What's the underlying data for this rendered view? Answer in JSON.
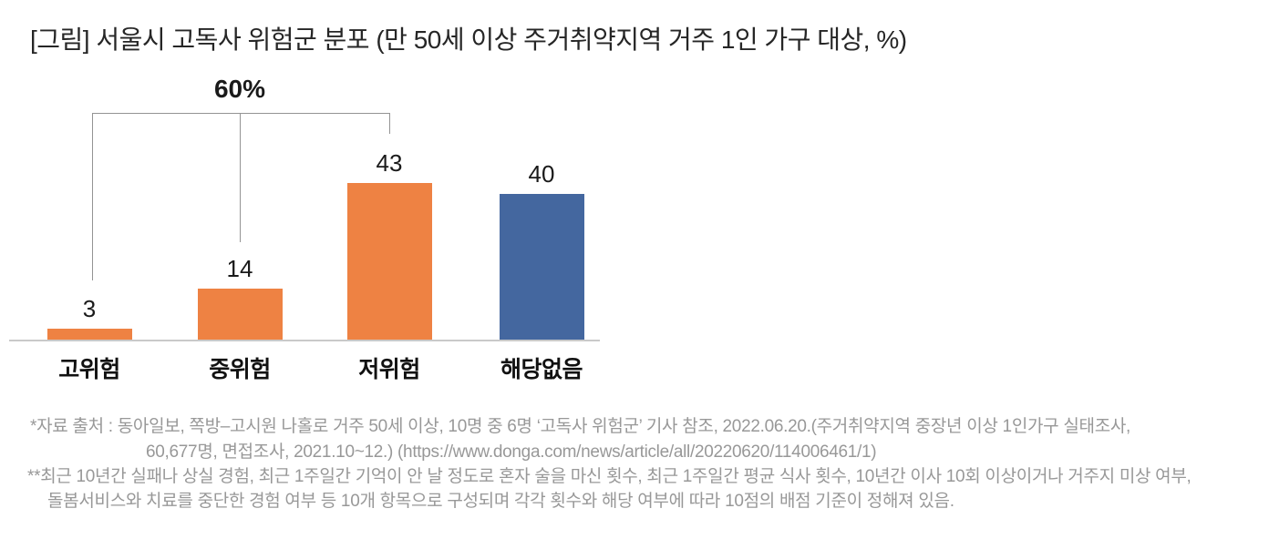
{
  "title": "[그림] 서울시 고독사 위험군 분포 (만 50세 이상 주거취약지역 거주 1인 가구 대상, %)",
  "chart_data": {
    "type": "bar",
    "title": "서울시 고독사 위험군 분포",
    "unit": "%",
    "categories": [
      "고위험",
      "중위험",
      "저위험",
      "해당없음"
    ],
    "values": [
      3,
      14,
      43,
      40
    ],
    "bar_colors": [
      "#EE8243",
      "#EE8243",
      "#EE8243",
      "#44679F"
    ],
    "annotation": {
      "label": "60%",
      "note": "bracket spanning 고위험+중위험+저위험 (3+14+43=60)"
    },
    "ylim": [
      0,
      45
    ],
    "gridlines": false,
    "value_labels_shown": true,
    "legend": "none"
  },
  "colors": {
    "orange_series": "#EE8243",
    "blue_series": "#44679F",
    "axis_line": "#c9c9c9",
    "bracket_line": "#949494",
    "footnote_text": "#989898"
  },
  "footnotes": {
    "line1": "*자료 출처 : 동아일보, 쪽방–고시원 나홀로 거주 50세 이상, 10명 중 6명 ‘고독사 위험군’ 기사 참조, 2022.06.20.(주거취약지역 중장년 이상 1인가구 실태조사,",
    "line2": "60,677명, 면접조사, 2021.10~12.) (https://www.donga.com/news/article/all/20220620/114006461/1)",
    "line3": "**최근 10년간 실패나 상실 경험, 최근 1주일간 기억이 안 날 정도로 혼자 술을 마신 횟수, 최근 1주일간 평균 식사 횟수, 10년간 이사 10회 이상이거나 거주지 미상 여부,",
    "line4": "돌봄서비스와 치료를 중단한 경험 여부 등 10개 항목으로 구성되며 각각 횟수와 해당 여부에 따라 10점의 배점 기준이 정해져 있음."
  }
}
